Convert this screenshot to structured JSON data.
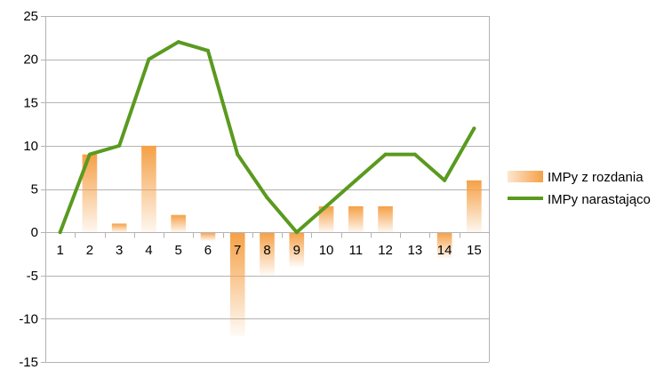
{
  "chart_data": {
    "type": "bar+line",
    "categories": [
      "1",
      "2",
      "3",
      "4",
      "5",
      "6",
      "7",
      "8",
      "9",
      "10",
      "11",
      "12",
      "13",
      "14",
      "15"
    ],
    "series": [
      {
        "name": "IMPy z rozdania",
        "type": "bar",
        "values": [
          0,
          9,
          1,
          10,
          2,
          -1,
          -12,
          -5,
          -4,
          3,
          3,
          3,
          0,
          -3,
          6
        ],
        "color": "#f5a046"
      },
      {
        "name": "IMPy narastająco",
        "type": "line",
        "values": [
          0,
          9,
          10,
          20,
          22,
          21,
          9,
          4,
          0,
          3,
          6,
          9,
          9,
          6,
          12
        ],
        "color": "#5a9a1f"
      }
    ],
    "ylim": [
      -15,
      25
    ],
    "yticks": [
      -15,
      -10,
      -5,
      0,
      5,
      10,
      15,
      20,
      25
    ],
    "grid": true,
    "legend_position": "right"
  }
}
